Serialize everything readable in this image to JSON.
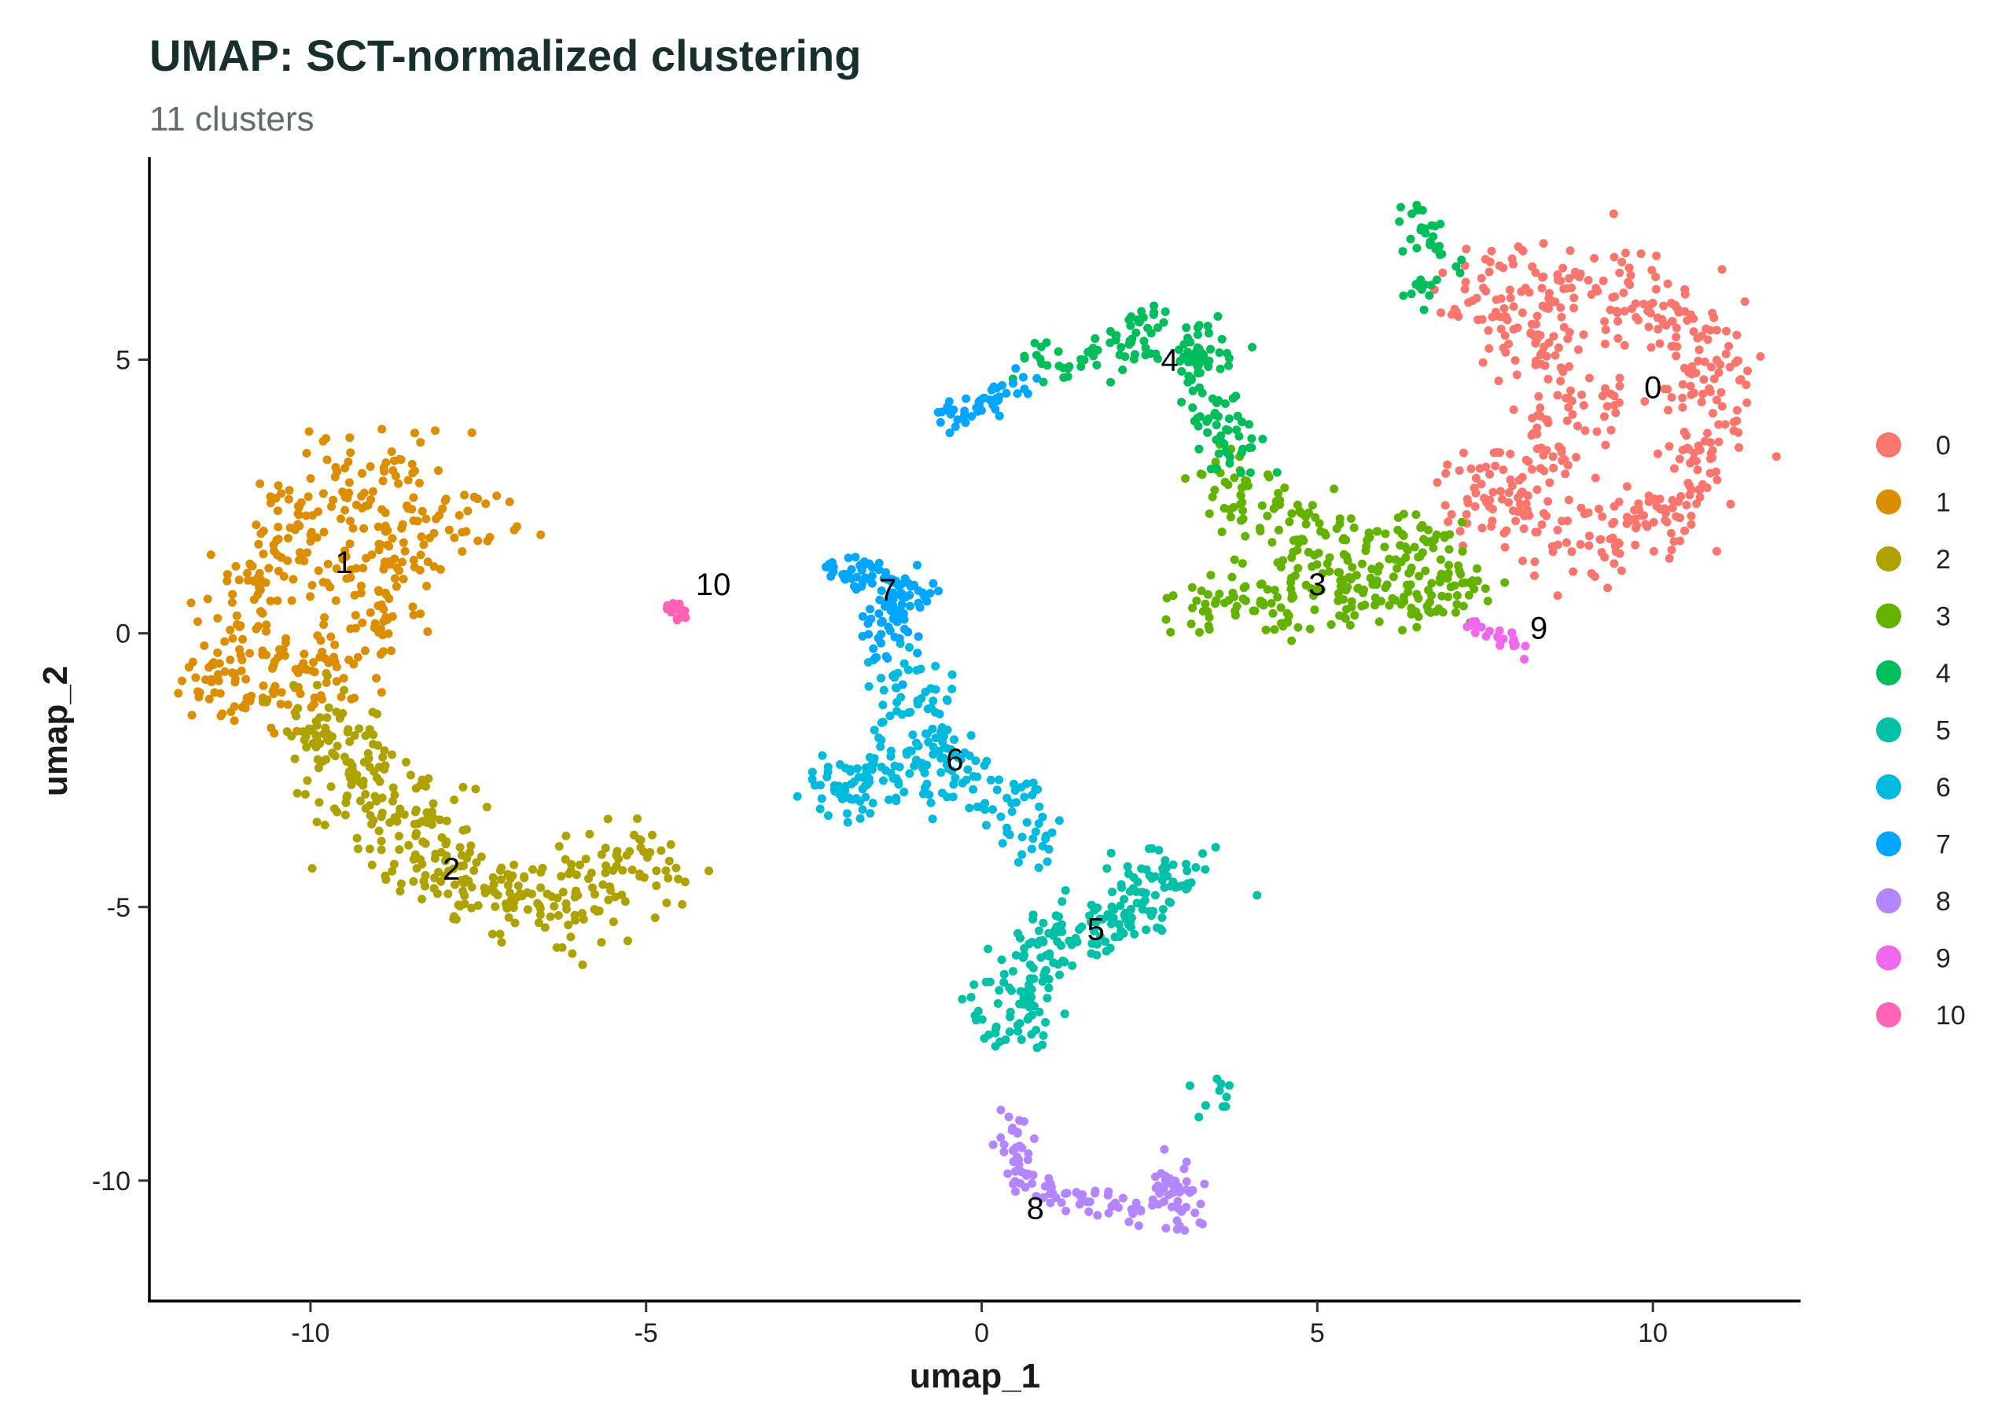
{
  "chart_data": {
    "type": "scatter",
    "title": "UMAP: SCT-normalized clustering",
    "subtitle": "11 clusters",
    "xlabel": "umap_1",
    "ylabel": "umap_2",
    "xlim": [
      -12.4,
      12.2
    ],
    "ylim": [
      -12.2,
      8.7
    ],
    "x_ticks": [
      -10,
      -5,
      0,
      5,
      10
    ],
    "y_ticks": [
      -10,
      -5,
      0,
      5
    ],
    "x_tick_labels": [
      "-10",
      "-5",
      "0",
      "5",
      "10"
    ],
    "y_tick_labels": [
      "-10",
      "-5",
      "0",
      "5"
    ],
    "grid": false,
    "legend_position": "right",
    "legend": [
      "0",
      "1",
      "2",
      "3",
      "4",
      "5",
      "6",
      "7",
      "8",
      "9",
      "10"
    ],
    "clusters": [
      {
        "id": "0",
        "color": "#F8766D",
        "label_pos": [
          10.0,
          4.5
        ],
        "path": [
          [
            7.2,
            6.4
          ],
          [
            8.8,
            6.4
          ],
          [
            10.4,
            6.0
          ],
          [
            10.9,
            4.6
          ],
          [
            10.7,
            3.0
          ],
          [
            10.2,
            2.1
          ],
          [
            9.4,
            1.8
          ],
          [
            8.9,
            1.4
          ],
          [
            8.3,
            1.9
          ],
          [
            7.3,
            2.5
          ],
          [
            8.5,
            3.2
          ],
          [
            8.8,
            4.4
          ],
          [
            8.4,
            5.5
          ],
          [
            7.4,
            5.9
          ]
        ],
        "n": 520,
        "spread": 0.38
      },
      {
        "id": "1",
        "color": "#DB8E00",
        "label_pos": [
          -9.5,
          1.3
        ],
        "path": [
          [
            -8.4,
            3.2
          ],
          [
            -9.3,
            3.0
          ],
          [
            -9.9,
            2.3
          ],
          [
            -10.6,
            1.3
          ],
          [
            -11.0,
            0.2
          ],
          [
            -11.2,
            -1.0
          ],
          [
            -10.4,
            -1.2
          ],
          [
            -9.8,
            -0.8
          ],
          [
            -9.2,
            0.2
          ],
          [
            -8.8,
            1.6
          ],
          [
            -8.0,
            2.0
          ],
          [
            -7.3,
            2.2
          ]
        ],
        "n": 400,
        "spread": 0.42
      },
      {
        "id": "2",
        "color": "#AEA200",
        "label_pos": [
          -7.9,
          -4.3
        ],
        "path": [
          [
            -10.0,
            -1.4
          ],
          [
            -9.4,
            -2.4
          ],
          [
            -8.8,
            -3.2
          ],
          [
            -8.2,
            -4.1
          ],
          [
            -7.5,
            -4.7
          ],
          [
            -6.8,
            -5.1
          ],
          [
            -6.0,
            -4.9
          ],
          [
            -5.4,
            -4.5
          ],
          [
            -4.7,
            -4.0
          ]
        ],
        "n": 360,
        "spread": 0.42
      },
      {
        "id": "3",
        "color": "#64B200",
        "label_pos": [
          5.0,
          0.9
        ],
        "path": [
          [
            3.7,
            3.1
          ],
          [
            3.9,
            2.3
          ],
          [
            4.8,
            1.8
          ],
          [
            5.8,
            1.7
          ],
          [
            6.7,
            1.5
          ],
          [
            7.2,
            1.0
          ],
          [
            6.4,
            0.6
          ],
          [
            5.6,
            0.6
          ],
          [
            4.8,
            0.9
          ],
          [
            3.8,
            0.6
          ],
          [
            3.0,
            0.4
          ]
        ],
        "n": 330,
        "spread": 0.33
      },
      {
        "id": "4",
        "color": "#00BD5C",
        "label_pos": [
          2.8,
          5.0
        ],
        "path": [
          [
            0.8,
            4.9
          ],
          [
            1.8,
            5.2
          ],
          [
            2.6,
            5.6
          ],
          [
            3.3,
            5.1
          ],
          [
            3.4,
            4.4
          ],
          [
            3.6,
            3.6
          ],
          [
            3.9,
            3.1
          ]
        ],
        "n": 170,
        "spread": 0.24,
        "extra_path": [
          [
            6.4,
            7.8
          ],
          [
            6.8,
            7.1
          ],
          [
            6.8,
            6.6
          ],
          [
            6.4,
            6.2
          ]
        ],
        "extra_n": 40
      },
      {
        "id": "5",
        "color": "#00C1A7",
        "label_pos": [
          1.7,
          -5.4
        ],
        "path": [
          [
            0.4,
            -7.3
          ],
          [
            0.7,
            -6.4
          ],
          [
            0.8,
            -5.8
          ],
          [
            1.4,
            -5.5
          ],
          [
            2.0,
            -5.3
          ],
          [
            2.6,
            -4.6
          ],
          [
            3.1,
            -4.2
          ]
        ],
        "n": 230,
        "spread": 0.32,
        "extra_path": [
          [
            3.3,
            -8.6
          ],
          [
            3.5,
            -8.5
          ]
        ],
        "extra_n": 10
      },
      {
        "id": "6",
        "color": "#00BADE",
        "label_pos": [
          -0.4,
          -2.3
        ],
        "path": [
          [
            -1.4,
            -0.5
          ],
          [
            -1.0,
            -1.3
          ],
          [
            -0.6,
            -2.0
          ],
          [
            -1.6,
            -2.6
          ],
          [
            -2.3,
            -2.8
          ],
          [
            -0.2,
            -2.6
          ],
          [
            0.6,
            -3.2
          ],
          [
            0.9,
            -3.9
          ]
        ],
        "n": 230,
        "spread": 0.3
      },
      {
        "id": "7",
        "color": "#00A6FF",
        "label_pos": [
          -1.4,
          0.8
        ],
        "path": [
          [
            -2.2,
            1.2
          ],
          [
            -1.5,
            1.0
          ],
          [
            -1.0,
            0.8
          ],
          [
            -1.5,
            0.2
          ],
          [
            -1.3,
            -0.5
          ]
        ],
        "n": 110,
        "spread": 0.18,
        "extra_path": [
          [
            -0.6,
            4.1
          ],
          [
            -0.3,
            3.9
          ],
          [
            0.1,
            4.2
          ],
          [
            0.6,
            4.7
          ]
        ],
        "extra_n": 45
      },
      {
        "id": "8",
        "color": "#B385FF",
        "label_pos": [
          0.8,
          -10.5
        ],
        "path": [
          [
            0.4,
            -8.9
          ],
          [
            0.5,
            -9.9
          ],
          [
            1.2,
            -10.3
          ],
          [
            2.2,
            -10.5
          ],
          [
            2.7,
            -10.4
          ],
          [
            2.9,
            -9.8
          ],
          [
            3.0,
            -11.0
          ]
        ],
        "n": 130,
        "spread": 0.15
      },
      {
        "id": "9",
        "color": "#EF67EB",
        "label_pos": [
          8.3,
          0.1
        ],
        "path": [
          [
            7.2,
            0.1
          ],
          [
            7.6,
            0.0
          ],
          [
            7.9,
            -0.2
          ],
          [
            8.0,
            -0.4
          ]
        ],
        "n": 26,
        "spread": 0.08
      },
      {
        "id": "10",
        "color": "#FF63B6",
        "label_pos": [
          -4.0,
          0.9
        ],
        "path": [
          [
            -4.7,
            0.5
          ],
          [
            -4.5,
            0.4
          ],
          [
            -4.5,
            0.3
          ]
        ],
        "n": 26,
        "spread": 0.05
      }
    ]
  }
}
